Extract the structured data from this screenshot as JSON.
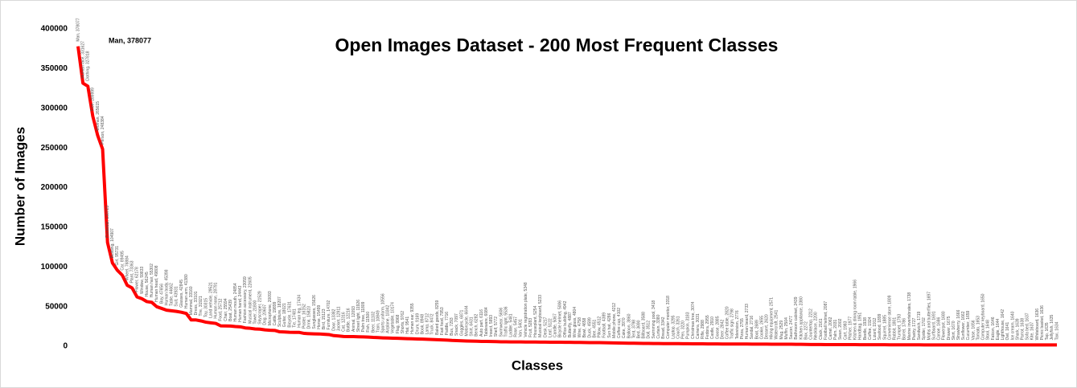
{
  "chart_data": {
    "type": "line",
    "title": "Open Images Dataset - 200 Most Frequent Classes",
    "x_label": "Classes",
    "y_label": "Number of Images",
    "annotation": "Man, 378077",
    "color": "#ff0000",
    "ylim": [
      0,
      400000
    ],
    "yticks": [
      0,
      50000,
      100000,
      150000,
      200000,
      250000,
      300000,
      350000,
      400000
    ],
    "values": [
      378077,
      331627,
      327818,
      289999,
      265615,
      248384,
      130723,
      104907,
      95731,
      89495,
      76884,
      73363,
      62178,
      59833,
      56245,
      55302,
      49808,
      47656,
      45398,
      44662,
      43931,
      42845,
      41380,
      33160,
      33101,
      31921,
      30315,
      29521,
      28791,
      25712,
      25594,
      25439,
      24854,
      24443,
      23059,
      22605,
      21800,
      21529,
      20607,
      20093,
      19899,
      18207,
      18021,
      17631,
      17481,
      17434,
      16152,
      15823,
      15626,
      15499,
      15123,
      14702,
      13382,
      12911,
      12316,
      12216,
      12093,
      11926,
      11809,
      11500,
      11102,
      10849,
      10556,
      10342,
      10174,
      9968,
      9762,
      9541,
      9355,
      9169,
      8948,
      8712,
      8472,
      8259,
      7953,
      7716,
      7293,
      7097,
      6871,
      6644,
      6431,
      6282,
      6116,
      6084,
      5893,
      5772,
      5606,
      5536,
      5481,
      5457,
      5401,
      5348,
      5283,
      5254,
      5233,
      5217,
      5122,
      5067,
      5006,
      4942,
      4887,
      4804,
      4758,
      4658,
      4599,
      4551,
      4512,
      4389,
      4286,
      4212,
      4102,
      3970,
      3860,
      3798,
      3690,
      3588,
      3512,
      3418,
      3380,
      3342,
      3318,
      3295,
      3261,
      3220,
      3183,
      3074,
      3031,
      2988,
      2955,
      2910,
      2885,
      2842,
      2820,
      2798,
      2776,
      2755,
      2733,
      2716,
      2689,
      2655,
      2620,
      2571,
      2541,
      2529,
      2504,
      2477,
      2439,
      2380,
      2272,
      2212,
      2200,
      2161,
      2087,
      2062,
      2031,
      2002,
      1983,
      1977,
      1966,
      1951,
      1938,
      1924,
      1912,
      1899,
      1885,
      1809,
      1801,
      1793,
      1786,
      1738,
      1727,
      1719,
      1702,
      1697,
      1691,
      1686,
      1680,
      1675,
      1670,
      1666,
      1662,
      1659,
      1656,
      1653,
      1650,
      1648,
      1646,
      1644,
      1642,
      1641,
      1640,
      1639,
      1638,
      1637,
      1637,
      1636,
      1636,
      1635,
      1635,
      1634
    ],
    "value_labels": [
      "Man, 378077",
      "Human face, 331627",
      "Clothing, 327818",
      "Tree, 289999",
      "Woman, 265615",
      "Person, 248384",
      "Footwear, 130723",
      "Building, 104907",
      "Girl, 95731",
      "Car, 89495",
      "Wheel, 76884",
      "Plant, 73363",
      "Flower, 62178",
      "Window, 59833",
      "House, 56245",
      "Human hair, 55302",
      "Human head, 49808",
      "Boy, 47656",
      "Human body, 45398",
      "Table, 44662",
      "Suit, 43931",
      "Glasses, 42845",
      "Human arm, 41380",
      "Mammal, 33160",
      "Dress, 33101",
      "Tire, 31921",
      "Toy, 30315",
      "Land vehicle, 29521",
      "Human nose, 28791",
      "Food, 25712",
      "Chair, 25594",
      "Boat, 25439",
      "Human mouth, 24854",
      "Human hand, 24443",
      "Fashion accessory, 23059",
      "Musical instrument, 22605",
      "Tower, 21800",
      "Skyscraper, 21529",
      "Dog, 20607",
      "Microphone, 20093",
      "Cattle, 19899",
      "Sculpture, 18207",
      "Guitar, 18021",
      "Bicycle, 17631",
      "Tie, 17481",
      "Human leg, 17434",
      "Poster, 16152",
      "Drink, 15823",
      "Sunglasses, 15626",
      "Horse, 15499",
      "Bird, 15123",
      "Furniture, 14702",
      "Door, 13382",
      "Jacket, 12911",
      "Cat, 12316",
      "Bottle, 12216",
      "Animal, 12093",
      "Street light, 11926",
      "Palm tree, 11809",
      "Fish, 11500",
      "Beer, 11102",
      "Train, 10849",
      "Sports uniform, 10556",
      "Airplane, 10342",
      "Vegetable, 10174",
      "Flag, 9968",
      "Shorts, 9762",
      "Hat, 9541",
      "Human ear, 9355",
      "Drum, 9169",
      "Book, 8948",
      "Lamp, 8712",
      "Truck, 8472",
      "Baked goods, 8259",
      "Fast food, 7953",
      "Paddle, 7716",
      "Bus, 7293",
      "Snack, 7097",
      "Goggles, 6871",
      "Motorcycle, 6644",
      "Shirt, 6431",
      "Bench, 6282",
      "Auto part, 6116",
      "Tableware, 6084",
      "Insect, 5893",
      "Shelf, 5772",
      "Swimwear, 5606",
      "Traffic light, 5536",
      "Ladder, 5481",
      "Rose, 5457",
      "Van, 5401",
      "Vehicle registration plate, 5348",
      "Fruit, 5283",
      "Houseplant, 5254",
      "Musical keyboard, 5233",
      "Desk, 5217",
      "Leaf, 5122",
      "Candle, 5067",
      "Bicycle helmet, 5006",
      "Office building, 4942",
      "Butterfly, 4887",
      "Wine glass, 4804",
      "Wine, 4758",
      "Bowl, 4658",
      "Duck, 4599",
      "Bee, 4551",
      "Pillow, 4512",
      "Football, 4389",
      "Sun hat, 4286",
      "Mobile phone, 4212",
      "Coffee cup, 4102",
      "Cake, 3970",
      "Balloon, 3860",
      "Tent, 3798",
      "Bed, 3690",
      "Billboard, 3588",
      "Doll, 3512",
      "Swimming pool, 3418",
      "Curtain, 3380",
      "Bread, 3342",
      "Computer monitor, 3318",
      "Laptop, 3295",
      "Couch, 3261",
      "Pen, 3220",
      "Pumpkin, 3183",
      "Christmas tree, 3074",
      "Camera, 3031",
      "Rifle, 2988",
      "Fedora, 2955",
      "Castle, 2910",
      "Goose, 2885",
      "Deer, 2842",
      "Coffee table, 2820",
      "Traffic sign, 2798",
      "Television, 2776",
      "Pizza, 2755",
      "Human beard, 2733",
      "Sandal, 2716",
      "Boot, 2689",
      "Cookie, 2655",
      "Dessert, 2620",
      "Hiking equipment, 2571",
      "Watercraft, 2541",
      "Mug, 2529",
      "Muffin, 2504",
      "Saucer, 2477",
      "Bathroom cabinet, 2439",
      "Kitchen appliance, 2380",
      "Box, 2272",
      "Countertop, 2212",
      "Necklace, 2200",
      "Clock, 2161",
      "Football helmet, 2087",
      "Camel, 2062",
      "Palm, 2031",
      "Swan, 2002",
      "Cart, 1983",
      "Pitcher, 1977",
      "Kitchen & dining room table, 1966",
      "Handbag, 1951",
      "Beetle, 1938",
      "Coffee, 1924",
      "Lizard, 1912",
      "Seafood, 1899",
      "Squirrel, 1885",
      "Convenience store, 1809",
      "Rabbit, 1801",
      "Trumpet, 1793",
      "Barrel, 1786",
      "Marine invertebrates, 1738",
      "Pastry, 1727",
      "Sandwich, 1719",
      "Spider, 1702",
      "Moths and butterflies, 1697",
      "Surfboard, 1691",
      "Canoe, 1686",
      "Flowerpot, 1680",
      "Drawer, 1675",
      "Skirt, 1670",
      "Strawberry, 1666",
      "Sunflower, 1662",
      "Cucumber, 1659",
      "Vase, 1656",
      "Tomato, 1653",
      "Computer keyboard, 1650",
      "Stool, 1648",
      "Falcon, 1646",
      "Eagle, 1644",
      "Lighthouse, 1642",
      "Owl, 1641",
      "Ice cream, 1640",
      "Shark, 1639",
      "Parrot, 1638",
      "Sofa bed, 1637",
      "Kite, 1637",
      "Whiteboard, 1636",
      "Picnic basket, 1636",
      "Tap, 1635",
      "Jellyfish, 1635",
      "Taxi, 1634"
    ]
  }
}
